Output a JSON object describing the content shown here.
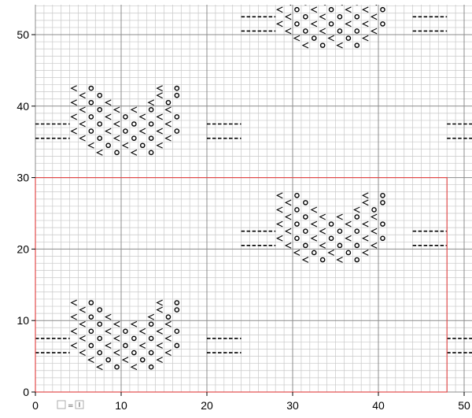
{
  "chart_data": {
    "type": "scatter",
    "xlim": [
      0,
      51
    ],
    "ylim": [
      0,
      55
    ],
    "xticks": [
      0,
      10,
      20,
      30,
      40,
      50
    ],
    "yticks": [
      0,
      10,
      20,
      30,
      40,
      50
    ],
    "grid": true,
    "minor_grid_step": 1,
    "frame": {
      "x": [
        0,
        48
      ],
      "y": [
        0,
        30
      ],
      "color": "#e24b4b"
    },
    "motif_anchors": [
      {
        "x": 4,
        "y": 3
      },
      {
        "x": 4,
        "y": 33
      },
      {
        "x": 28,
        "y": 18
      },
      {
        "x": 28,
        "y": 48
      },
      {
        "x": 52,
        "y": 3
      },
      {
        "x": 52,
        "y": 33
      }
    ],
    "legend": {
      "symbol_label": "="
    }
  }
}
